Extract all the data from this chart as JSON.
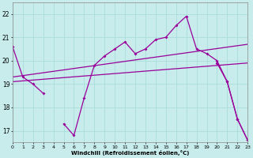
{
  "xlabel": "Windchill (Refroidissement éolien,°C)",
  "bg_color": "#c8ecec",
  "line_color": "#990099",
  "grid_color": "#aadddd",
  "x": [
    0,
    1,
    2,
    3,
    4,
    5,
    6,
    7,
    8,
    9,
    10,
    11,
    12,
    13,
    14,
    15,
    16,
    17,
    18,
    19,
    20,
    21,
    22,
    23
  ],
  "main_line": [
    20.6,
    19.3,
    19.0,
    18.6,
    null,
    17.3,
    16.8,
    18.4,
    19.8,
    20.2,
    20.5,
    20.8,
    20.3,
    20.5,
    20.9,
    21.0,
    21.5,
    21.9,
    20.5,
    20.3,
    20.0,
    19.1,
    17.5,
    16.6
  ],
  "upper_band_start": 19.3,
  "upper_band_end": 20.7,
  "lower_band_start": 19.1,
  "lower_band_end": 19.9,
  "bottom_line": [
    null,
    null,
    null,
    null,
    null,
    null,
    null,
    null,
    null,
    null,
    null,
    null,
    null,
    null,
    null,
    null,
    null,
    null,
    null,
    null,
    19.9,
    19.1,
    17.5,
    16.6
  ],
  "ylim": [
    16.5,
    22.5
  ],
  "yticks": [
    17,
    18,
    19,
    20,
    21,
    22
  ],
  "xlim": [
    0,
    23
  ]
}
